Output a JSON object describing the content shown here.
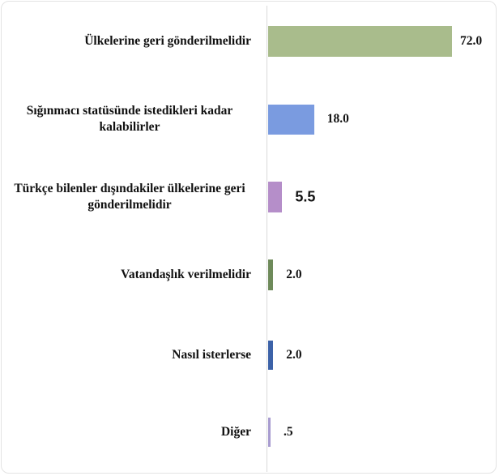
{
  "chart_data": {
    "type": "bar",
    "orientation": "horizontal",
    "categories": [
      "Ülkelerine geri gönderilmelidir",
      "Sığınmacı statüsünde istedikleri kadar kalabilirler",
      "Türkçe bilenler dışındakiler ülkelerine geri gönderilmelidir",
      "Vatandaşlık verilmelidir",
      "Nasıl isterlerse",
      "Diğer"
    ],
    "values": [
      72,
      18,
      5.5,
      2,
      2,
      0.5
    ],
    "value_labels": [
      "72.0",
      "18.0",
      "5.5",
      "2.0",
      "2.0",
      ".5"
    ],
    "colors": [
      "#a9bc8c",
      "#7a9be0",
      "#b58ec9",
      "#6e8a5a",
      "#3c62a8",
      "#a89cd0"
    ]
  }
}
